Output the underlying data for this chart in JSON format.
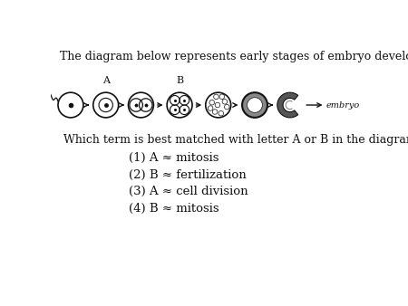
{
  "title": "The diagram below represents early stages of embryo development.",
  "question": "Which term is best matched with letter A or B in the diagram",
  "choices": [
    "(1) A ≈ mitosis",
    "(2) B ≈ fertilization",
    "(3) A ≈ cell division",
    "(4) B ≈ mitosis"
  ],
  "bg_color": "#ffffff",
  "text_color": "#111111",
  "title_fontsize": 9.0,
  "question_fontsize": 9.0,
  "choice_fontsize": 9.5
}
